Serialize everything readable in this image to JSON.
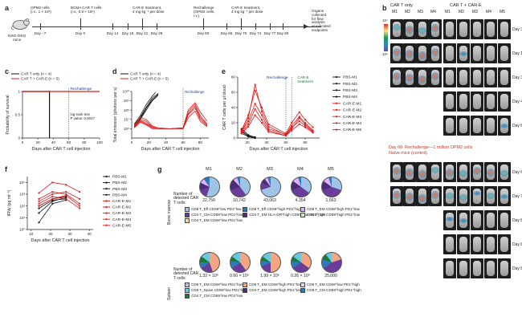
{
  "panel_a": {
    "label": "a",
    "mouse_label": "NSG-DKO\nmice",
    "events": [
      {
        "text": "OPM2 cells\n(i.v., 1 × 10⁶)",
        "day": "Day −7"
      },
      {
        "text": "BCMA CAR T cells\n(i.v., 0.5 × 10⁶)",
        "day": "Day 0"
      },
      {
        "text": "",
        "day": "Day 14"
      },
      {
        "text": "",
        "day": "Day 18"
      },
      {
        "text": "CAR-E treatment,\n4 mg kg⁻¹ per dose",
        "day": "Day 21"
      },
      {
        "text": "",
        "day": "Day 28"
      },
      {
        "text": "Rechallenge\n(OPM2 cells,\ni.v.)",
        "day": "Day 60"
      },
      {
        "text": "",
        "day": "Day 66"
      },
      {
        "text": "CAR-E treatment,\n4 mg kg⁻¹ per dose",
        "day": "Day 70"
      },
      {
        "text": "",
        "day": "Day 74"
      },
      {
        "text": "",
        "day": "Day 77"
      },
      {
        "text": "",
        "day": "Day 80"
      },
      {
        "text": "Organs collected\nfor flow analysis\nat indicated\nendpoints",
        "day": ""
      }
    ]
  },
  "panel_b": {
    "label": "b",
    "groups": [
      "CAR T only",
      "CAR T + CAR-E"
    ],
    "cols_left": [
      "M1",
      "M2",
      "M3",
      "M4"
    ],
    "cols_right": [
      "M1",
      "M2",
      "M3",
      "M4",
      "M5"
    ],
    "scale_top": "10⁷",
    "scale_bottom": "10⁶",
    "days": [
      "Day 3",
      "Day 17",
      "Day 31",
      "Day 45",
      "Day 60",
      "Day 66",
      "Day 74",
      "Day 80",
      "Day 83",
      "Day 88"
    ],
    "rechallenge_note": "Day 60: Rechallenge—1 million OPM2 cells",
    "naive_note": "Naive mice (control)"
  },
  "panel_c": {
    "label": "c",
    "chart_data": {
      "type": "line",
      "title": "",
      "xlabel": "Days after CAR T cell injection",
      "ylabel": "Probability of survival",
      "xlim": [
        0,
        100
      ],
      "ylim": [
        0,
        1
      ],
      "xticks": [
        0,
        20,
        40,
        60,
        80,
        100
      ],
      "yticks": [
        0,
        0.5,
        1.0
      ],
      "series": [
        {
          "name": "CAR T only (n = 4)",
          "color": "#111111",
          "x": [
            0,
            35,
            35
          ],
          "y": [
            1.0,
            1.0,
            0.0
          ]
        },
        {
          "name": "CAR T + CAR-E (n = 5)",
          "color": "#e31a1c",
          "x": [
            0,
            100
          ],
          "y": [
            1.0,
            1.0
          ]
        }
      ],
      "annotations": [
        "Rechallenge",
        "log-rank test\nP value: 0.0047"
      ]
    }
  },
  "panel_d": {
    "label": "d",
    "chart_data": {
      "type": "line",
      "title": "",
      "xlabel": "Days after CAR T cell injection",
      "ylabel": "Total emission (photons per s)",
      "xlim": [
        0,
        90
      ],
      "ylim_log10": [
        5,
        10
      ],
      "xticks": [
        0,
        20,
        40,
        60,
        80
      ],
      "yticks": [
        "10⁶",
        "10⁷",
        "10⁸",
        "10⁹",
        "10¹⁰"
      ],
      "legend": [
        "CAR T only (n = 4)",
        "CAR T + CAR-E (n = 5)"
      ],
      "series": [
        {
          "name": "CAR T only",
          "color": "#111111",
          "x": [
            3,
            10,
            17,
            24,
            31
          ],
          "y": [
            6.3,
            7.2,
            8.3,
            9.3,
            9.8
          ]
        },
        {
          "name": "CAR T only",
          "color": "#111111",
          "x": [
            3,
            10,
            17,
            24,
            31
          ],
          "y": [
            6.1,
            7.0,
            8.0,
            9.0,
            9.6
          ]
        },
        {
          "name": "CAR T only",
          "color": "#111111",
          "x": [
            3,
            10,
            17,
            24,
            28
          ],
          "y": [
            6.5,
            7.4,
            8.6,
            9.5,
            9.9
          ]
        },
        {
          "name": "CAR T only",
          "color": "#111111",
          "x": [
            3,
            10,
            17,
            24,
            31
          ],
          "y": [
            6.2,
            7.1,
            8.2,
            9.1,
            9.7
          ]
        },
        {
          "name": "CAR T + CAR-E",
          "color": "#e31a1c",
          "x": [
            3,
            10,
            17,
            24,
            31,
            45,
            60,
            66,
            74,
            80,
            88
          ],
          "y": [
            6.3,
            7.0,
            6.8,
            6.2,
            6.0,
            6.0,
            6.1,
            7.8,
            8.6,
            7.4,
            6.5
          ]
        },
        {
          "name": "CAR T + CAR-E",
          "color": "#e31a1c",
          "x": [
            3,
            10,
            17,
            24,
            31,
            45,
            60,
            66,
            74,
            80,
            88
          ],
          "y": [
            6.2,
            6.8,
            6.5,
            6.1,
            6.0,
            6.0,
            6.0,
            7.5,
            8.2,
            7.0,
            6.3
          ]
        },
        {
          "name": "CAR T + CAR-E",
          "color": "#e31a1c",
          "x": [
            3,
            10,
            17,
            24,
            31,
            45,
            60,
            66,
            74,
            80,
            88
          ],
          "y": [
            6.4,
            7.2,
            7.0,
            6.3,
            6.1,
            6.0,
            6.1,
            8.0,
            8.8,
            7.8,
            6.8
          ]
        },
        {
          "name": "CAR T + CAR-E",
          "color": "#e31a1c",
          "x": [
            3,
            10,
            17,
            24,
            31,
            45,
            60,
            66,
            74,
            80,
            88
          ],
          "y": [
            6.1,
            6.7,
            6.4,
            6.0,
            6.0,
            6.0,
            6.0,
            7.2,
            7.9,
            6.8,
            6.2
          ]
        },
        {
          "name": "CAR T + CAR-E",
          "color": "#e31a1c",
          "x": [
            3,
            10,
            17,
            24,
            31,
            45,
            60,
            66,
            74,
            80,
            88
          ],
          "y": [
            6.3,
            6.9,
            6.6,
            6.2,
            6.0,
            6.0,
            6.1,
            7.6,
            8.4,
            7.2,
            6.4
          ]
        }
      ],
      "annotations": [
        "Rechallenge"
      ]
    }
  },
  "panel_e": {
    "label": "e",
    "chart_data": {
      "type": "line",
      "title": "",
      "xlabel": "Days after CAR T cell injection",
      "ylabel": "CAR T cells per μl blood",
      "xlim": [
        10,
        95
      ],
      "ylim": [
        0,
        80
      ],
      "xticks": [
        20,
        40,
        60,
        80
      ],
      "yticks": [
        0,
        20,
        40,
        60,
        80
      ],
      "series": [
        {
          "name": "PBS-M1",
          "color": "#111111",
          "x": [
            14,
            21,
            28
          ],
          "y": [
            12,
            4,
            1
          ]
        },
        {
          "name": "PBS-M2",
          "color": "#111111",
          "x": [
            14,
            21,
            28
          ],
          "y": [
            8,
            3,
            1
          ]
        },
        {
          "name": "PBS-M3",
          "color": "#111111",
          "x": [
            14,
            21,
            28
          ],
          "y": [
            10,
            2,
            0
          ]
        },
        {
          "name": "PBS-M4",
          "color": "#111111",
          "x": [
            14,
            21,
            28
          ],
          "y": [
            6,
            2,
            0
          ]
        },
        {
          "name": "CAR-E-M1",
          "color": "#e31a1c",
          "x": [
            14,
            21,
            28,
            35,
            42,
            60,
            66,
            74,
            80,
            88
          ],
          "y": [
            10,
            30,
            62,
            40,
            18,
            6,
            20,
            34,
            24,
            14
          ]
        },
        {
          "name": "CAR-E-M2",
          "color": "#e31a1c",
          "x": [
            14,
            21,
            28,
            35,
            42,
            60,
            66,
            74,
            80,
            88
          ],
          "y": [
            8,
            22,
            45,
            30,
            12,
            5,
            16,
            28,
            20,
            10
          ]
        },
        {
          "name": "CAR-E-M3",
          "color": "#e31a1c",
          "x": [
            14,
            21,
            28,
            35,
            42,
            60,
            66,
            74,
            80,
            88
          ],
          "y": [
            9,
            26,
            70,
            35,
            15,
            4,
            14,
            22,
            16,
            8
          ]
        },
        {
          "name": "CAR-E-M4",
          "color": "#e31a1c",
          "x": [
            14,
            21,
            28,
            35,
            42,
            60,
            66,
            74,
            80,
            88
          ],
          "y": [
            7,
            18,
            38,
            24,
            10,
            3,
            12,
            26,
            18,
            9
          ]
        },
        {
          "name": "CAR-E-M5",
          "color": "#e31a1c",
          "x": [
            14,
            21,
            28,
            35,
            42,
            60,
            66,
            74,
            80,
            88
          ],
          "y": [
            6,
            15,
            30,
            20,
            8,
            3,
            10,
            18,
            14,
            7
          ]
        }
      ],
      "annotations": [
        "Rechallenge",
        "CAR-E\ntreatment"
      ]
    }
  },
  "panel_f": {
    "label": "f",
    "chart_data": {
      "type": "line",
      "title": "",
      "xlabel": "Days after CAR T cell injection",
      "ylabel": "IFNγ (pg ml⁻¹)",
      "xlim": [
        8,
        42
      ],
      "ylim_log10": [
        0,
        4.5
      ],
      "xticks": [
        10,
        20,
        30,
        40
      ],
      "yticks": [
        "10⁰",
        "10¹",
        "10²",
        "10³",
        "10⁴"
      ],
      "series": [
        {
          "name": "PBS-M1",
          "color": "#111111",
          "x": [
            14,
            21,
            28
          ],
          "y": [
            2.0,
            2.6,
            2.8
          ]
        },
        {
          "name": "PBS-M2",
          "color": "#111111",
          "x": [
            14,
            21,
            28
          ],
          "y": [
            0.6,
            2.2,
            2.5
          ]
        },
        {
          "name": "PBS-M3",
          "color": "#111111",
          "x": [
            14,
            21,
            28
          ],
          "y": [
            1.4,
            2.4,
            2.7
          ]
        },
        {
          "name": "PBS-M4",
          "color": "#111111",
          "x": [
            14,
            21,
            28
          ],
          "y": [
            1.8,
            2.5,
            2.6
          ]
        },
        {
          "name": "CAR-E-M1",
          "color": "#e31a1c",
          "x": [
            14,
            21,
            28,
            35
          ],
          "y": [
            3.1,
            4.0,
            3.8,
            3.2
          ]
        },
        {
          "name": "CAR-E-M2",
          "color": "#e31a1c",
          "x": [
            14,
            21,
            28,
            35
          ],
          "y": [
            2.6,
            3.2,
            3.0,
            2.2
          ]
        },
        {
          "name": "CAR-E-M3",
          "color": "#e31a1c",
          "x": [
            14,
            21,
            28,
            35
          ],
          "y": [
            2.4,
            3.0,
            3.2,
            2.6
          ]
        },
        {
          "name": "CAR-E-M4",
          "color": "#e31a1c",
          "x": [
            14,
            21,
            28,
            35
          ],
          "y": [
            2.2,
            2.8,
            2.6,
            1.8
          ]
        },
        {
          "name": "CAR-E-M5",
          "color": "#e31a1c",
          "x": [
            14,
            21,
            28,
            35
          ],
          "y": [
            2.0,
            2.6,
            2.9,
            2.0
          ]
        }
      ]
    }
  },
  "panel_g": {
    "label": "g",
    "mice": [
      "M1",
      "M2",
      "M3",
      "M4",
      "M5"
    ],
    "bone_marrow": {
      "row_label": "Bone marrow",
      "count_label": "Number of detected CAR T cells:",
      "counts": [
        "22,750",
        "10,742",
        "43,063",
        "4,354",
        "1,563"
      ],
      "slices": [
        [
          [
            "#9ec5e8",
            0.55
          ],
          [
            "#6a3d9a",
            0.15
          ],
          [
            "#4b2c7a",
            0.12
          ],
          [
            "#e0b0ff",
            0.08
          ],
          [
            "#2b7bba",
            0.1
          ]
        ],
        [
          [
            "#9ec5e8",
            0.4
          ],
          [
            "#6a3d9a",
            0.3
          ],
          [
            "#4b2c7a",
            0.18
          ],
          [
            "#e0b0ff",
            0.07
          ],
          [
            "#2b7bba",
            0.05
          ]
        ],
        [
          [
            "#9ec5e8",
            0.7
          ],
          [
            "#6a3d9a",
            0.12
          ],
          [
            "#4b2c7a",
            0.08
          ],
          [
            "#e0b0ff",
            0.05
          ],
          [
            "#2b7bba",
            0.05
          ]
        ],
        [
          [
            "#9ec5e8",
            0.35
          ],
          [
            "#6a3d9a",
            0.35
          ],
          [
            "#4b2c7a",
            0.15
          ],
          [
            "#e0b0ff",
            0.1
          ],
          [
            "#2b7bba",
            0.05
          ]
        ],
        [
          [
            "#9ec5e8",
            0.3
          ],
          [
            "#6a3d9a",
            0.4
          ],
          [
            "#4b2c7a",
            0.15
          ],
          [
            "#e0b0ff",
            0.1
          ],
          [
            "#2b7bba",
            0.05
          ]
        ]
      ],
      "legend": [
        {
          "color": "#9ec5e8",
          "text": "CD8 T_Eff CD69^low PD1^low"
        },
        {
          "color": "#2b7bba",
          "text": "CD8 T_Eff CD69^high PD1^high"
        },
        {
          "color": "#e0b0ff",
          "text": "CD8 T_EM CD69^high PD1^low"
        },
        {
          "color": "#6a3d9a",
          "text": "CD4 T_CM CD69^low PD1^low"
        },
        {
          "color": "#4b2c7a",
          "text": "CD4 T_EM HLA-DR^high CD69^low PD1^high"
        },
        {
          "color": "#c7e9c0",
          "text": "CD4 T_CM CD69^high PD1^low"
        },
        {
          "color": "#fdd0a2",
          "text": "CD4 T_EM CD69^low PD1^low"
        }
      ]
    },
    "spleen": {
      "row_label": "Spleen",
      "count_label": "Number of detected CAR T cells:",
      "counts": [
        "1.32 × 10⁶",
        "0.66 × 10⁶",
        "1.99 × 10⁶",
        "0.26 × 10⁶",
        "25,000"
      ],
      "slices": [
        [
          [
            "#f4a582",
            0.45
          ],
          [
            "#6a3d9a",
            0.2
          ],
          [
            "#2b7bba",
            0.1
          ],
          [
            "#1b7837",
            0.1
          ],
          [
            "#67c8e0",
            0.15
          ]
        ],
        [
          [
            "#f4a582",
            0.4
          ],
          [
            "#6a3d9a",
            0.25
          ],
          [
            "#2b7bba",
            0.12
          ],
          [
            "#1b7837",
            0.08
          ],
          [
            "#67c8e0",
            0.15
          ]
        ],
        [
          [
            "#f4a582",
            0.5
          ],
          [
            "#6a3d9a",
            0.18
          ],
          [
            "#2b7bba",
            0.1
          ],
          [
            "#1b7837",
            0.07
          ],
          [
            "#67c8e0",
            0.15
          ]
        ],
        [
          [
            "#f4a582",
            0.35
          ],
          [
            "#6a3d9a",
            0.3
          ],
          [
            "#2b7bba",
            0.12
          ],
          [
            "#1b7837",
            0.08
          ],
          [
            "#67c8e0",
            0.15
          ]
        ],
        [
          [
            "#f4a582",
            0.2
          ],
          [
            "#6a3d9a",
            0.45
          ],
          [
            "#2b7bba",
            0.15
          ],
          [
            "#1b7837",
            0.1
          ],
          [
            "#67c8e0",
            0.1
          ]
        ]
      ],
      "legend": [
        {
          "color": "#bcbddc",
          "text": "CD8 T_EM CD69^low PD1^low"
        },
        {
          "color": "#f4a582",
          "text": "CD8 T_EM CD69^high PD1^low"
        },
        {
          "color": "#e7d4f0",
          "text": "CD8 T_EM CD69^low PD1^high"
        },
        {
          "color": "#67c8e0",
          "text": "CD8 T_Naive CD69^low PD1^low"
        },
        {
          "color": "#4b2c7a",
          "text": "CD4 T_EM CD69^high PD1^low"
        },
        {
          "color": "#2b7bba",
          "text": "CD8 T_CM CD69^high PD1^high"
        },
        {
          "color": "#1b7837",
          "text": "CD4 T_CM CD69^low PD1^low"
        }
      ]
    }
  }
}
